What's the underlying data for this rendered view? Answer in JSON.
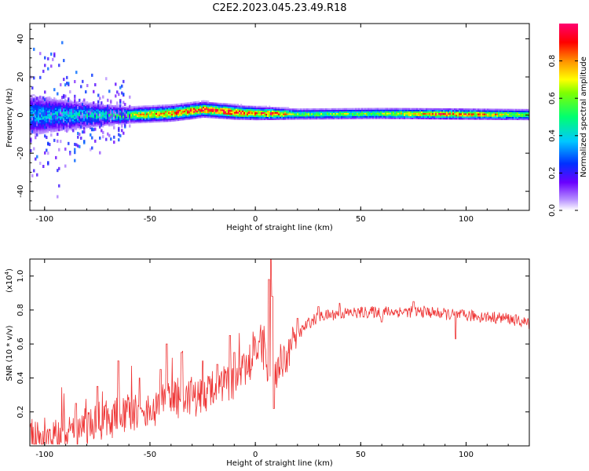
{
  "title": "C2E2.2023.045.23.49.R18",
  "chart_data": [
    {
      "type": "heatmap",
      "xlabel": "Height of straight line (km)",
      "ylabel": "Frequency (Hz)",
      "xlim": [
        -107,
        130
      ],
      "ylim": [
        -50,
        48
      ],
      "xticks": [
        -100,
        -50,
        0,
        50,
        100
      ],
      "yticks": [
        -40,
        -20,
        0,
        20,
        40
      ],
      "colorbar": {
        "label": "Normalized spectral amplitude",
        "range": [
          0,
          1
        ],
        "ticks": [
          "0.0",
          "0.2",
          "0.4",
          "0.6",
          "0.8"
        ]
      },
      "ridge": {
        "center_hz": [
          [
            -107,
            0
          ],
          [
            -60,
            0
          ],
          [
            -40,
            1
          ],
          [
            -25,
            3
          ],
          [
            -10,
            1.5
          ],
          [
            0,
            1
          ],
          [
            20,
            0.5
          ],
          [
            60,
            0.8
          ],
          [
            100,
            0.5
          ],
          [
            130,
            0.2
          ]
        ],
        "halfwidth_hz": [
          [
            -107,
            8
          ],
          [
            -80,
            5
          ],
          [
            -60,
            3
          ],
          [
            -30,
            3
          ],
          [
            0,
            2.5
          ],
          [
            20,
            2
          ],
          [
            130,
            2
          ]
        ],
        "peak_amplitude": [
          [
            -107,
            0.35
          ],
          [
            -70,
            0.45
          ],
          [
            -55,
            0.7
          ],
          [
            -30,
            0.85
          ],
          [
            -10,
            0.9
          ],
          [
            0,
            0.75
          ],
          [
            7,
            0.9
          ],
          [
            20,
            0.55
          ],
          [
            60,
            0.6
          ],
          [
            90,
            0.85
          ],
          [
            100,
            0.8
          ],
          [
            130,
            0.6
          ]
        ]
      },
      "grid": false
    },
    {
      "type": "line",
      "xlabel": "Height of straight line (km)",
      "ylabel": "SNR (10 * v/v)",
      "yscale_label": "(x10",
      "yscale_exp": "4",
      "xlim": [
        -107,
        130
      ],
      "ylim": [
        0.0,
        1.1
      ],
      "xticks": [
        -100,
        -50,
        0,
        50,
        100
      ],
      "yticks": [
        "0.2",
        "0.4",
        "0.6",
        "0.8",
        "1.0"
      ],
      "color": "#ee3333",
      "series": [
        {
          "envelope": [
            [
              -107,
              0.04
            ],
            [
              -95,
              0.05
            ],
            [
              -85,
              0.1
            ],
            [
              -75,
              0.14
            ],
            [
              -65,
              0.18
            ],
            [
              -55,
              0.2
            ],
            [
              -45,
              0.25
            ],
            [
              -35,
              0.28
            ],
            [
              -25,
              0.3
            ],
            [
              -15,
              0.33
            ],
            [
              -8,
              0.4
            ],
            [
              -3,
              0.5
            ],
            [
              0,
              0.55
            ],
            [
              3,
              0.58
            ],
            [
              8,
              0.4
            ],
            [
              12,
              0.48
            ],
            [
              18,
              0.62
            ],
            [
              25,
              0.72
            ],
            [
              30,
              0.76
            ],
            [
              40,
              0.78
            ],
            [
              60,
              0.79
            ],
            [
              80,
              0.79
            ],
            [
              95,
              0.77
            ],
            [
              110,
              0.76
            ],
            [
              120,
              0.75
            ],
            [
              130,
              0.72
            ]
          ],
          "spikes": [
            [
              7.5,
              1.1
            ],
            [
              6.5,
              0.98
            ],
            [
              8,
              0.88
            ],
            [
              -12,
              0.65
            ],
            [
              -42,
              0.6
            ],
            [
              -35,
              0.55
            ],
            [
              -65,
              0.5
            ],
            [
              -45,
              0.45
            ],
            [
              -75,
              0.35
            ],
            [
              -85,
              0.25
            ],
            [
              -55,
              0.4
            ],
            [
              -25,
              0.5
            ],
            [
              -10,
              0.55
            ],
            [
              -18,
              0.48
            ],
            [
              95,
              0.72
            ],
            [
              60,
              0.73
            ],
            [
              75,
              0.85
            ],
            [
              30,
              0.82
            ],
            [
              40,
              0.84
            ],
            [
              20,
              0.75
            ]
          ]
        }
      ]
    }
  ]
}
